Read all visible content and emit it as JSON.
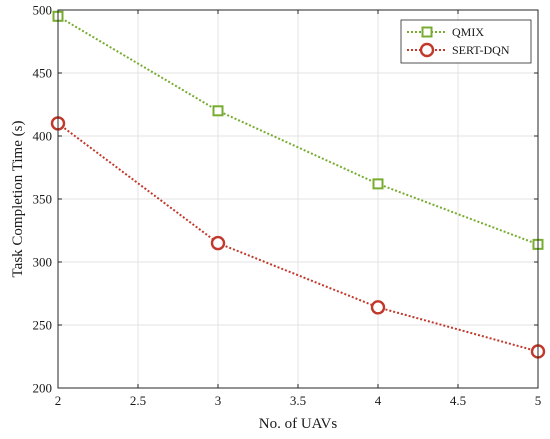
{
  "chart_data": {
    "type": "line",
    "xlabel": "No. of UAVs",
    "ylabel": "Task Completion Time (s)",
    "xlim": [
      2,
      5
    ],
    "ylim": [
      200,
      500
    ],
    "x_ticks": [
      2,
      2.5,
      3,
      3.5,
      4,
      4.5,
      5
    ],
    "x_tick_labels": [
      "2",
      "2.5",
      "3",
      "3.5",
      "4",
      "4.5",
      "5"
    ],
    "y_ticks": [
      200,
      250,
      300,
      350,
      400,
      450,
      500
    ],
    "y_tick_labels": [
      "200",
      "250",
      "300",
      "350",
      "400",
      "450",
      "500"
    ],
    "grid": true,
    "legend_position": "top-right",
    "series": [
      {
        "name": "QMIX",
        "color": "#77ac30",
        "marker": "square",
        "line_style": "dotted",
        "x": [
          2,
          3,
          4,
          5
        ],
        "y": [
          495,
          420,
          362,
          314
        ]
      },
      {
        "name": "SERT-DQN",
        "color": "#c0392b",
        "marker": "circle",
        "line_style": "dotted",
        "x": [
          2,
          3,
          4,
          5
        ],
        "y": [
          410,
          315,
          264,
          229
        ]
      }
    ]
  }
}
